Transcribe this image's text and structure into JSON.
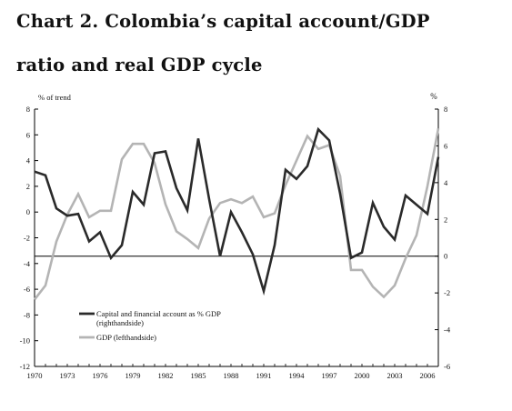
{
  "title_line1": "Chart 2. Colombia’s capital account/GDP",
  "title_line2": "ratio and real GDP cycle",
  "chart_data": {
    "type": "line",
    "title": "Chart 2. Colombia’s capital account/GDP ratio and real GDP cycle",
    "left_axis_label": "% of trend",
    "right_axis_label": "%",
    "left_ylim": [
      -12,
      8
    ],
    "left_ticks": [
      8,
      6,
      4,
      2,
      0,
      -2,
      -4,
      -6,
      -8,
      -10,
      -12
    ],
    "right_ylim": [
      -6,
      8
    ],
    "right_ticks": [
      8,
      6,
      4,
      2,
      0,
      -2,
      -4,
      -6
    ],
    "xlim": [
      1970,
      2007
    ],
    "x_ticks": [
      "1970",
      "1973",
      "1976",
      "1979",
      "1982",
      "1985",
      "1988",
      "1991",
      "1994",
      "1997",
      "2000",
      "2003",
      "2006"
    ],
    "grid": false,
    "zero_line_axis": "right",
    "legend_position": "lower-left",
    "series": [
      {
        "name": "Capital and financial account as % GDP",
        "name_sub": "(righthandside)",
        "axis": "right",
        "color": "#2a2a2a",
        "x": [
          1970,
          1971,
          1972,
          1973,
          1974,
          1975,
          1976,
          1977,
          1978,
          1979,
          1980,
          1981,
          1982,
          1983,
          1984,
          1985,
          1986,
          1987,
          1988,
          1989,
          1990,
          1991,
          1992,
          1993,
          1994,
          1995,
          1996,
          1997,
          1998,
          1999,
          2000,
          2001,
          2002,
          2003,
          2004,
          2005,
          2006,
          2007
        ],
        "y": [
          4.6,
          4.4,
          2.6,
          2.2,
          2.3,
          0.8,
          1.3,
          -0.1,
          0.6,
          3.5,
          2.8,
          5.6,
          5.7,
          3.7,
          2.5,
          6.4,
          3.1,
          0.0,
          2.4,
          1.3,
          0.1,
          -1.9,
          0.6,
          4.7,
          4.2,
          4.9,
          6.9,
          6.3,
          3.4,
          -0.1,
          0.2,
          2.9,
          1.6,
          0.9,
          3.3,
          2.8,
          2.3,
          5.4
        ]
      },
      {
        "name": "GDP (lefthandside)",
        "axis": "left",
        "color": "#b4b4b4",
        "x": [
          1970,
          1971,
          1972,
          1973,
          1974,
          1975,
          1976,
          1977,
          1978,
          1979,
          1980,
          1981,
          1982,
          1983,
          1984,
          1985,
          1986,
          1987,
          1988,
          1989,
          1990,
          1991,
          1992,
          1993,
          1994,
          1995,
          1996,
          1997,
          1998,
          1999,
          2000,
          2001,
          2002,
          2003,
          2004,
          2005,
          2006,
          2007
        ],
        "y": [
          -6.8,
          -5.7,
          -2.3,
          -0.2,
          1.4,
          -0.4,
          0.1,
          0.1,
          4.1,
          5.3,
          5.3,
          3.8,
          0.6,
          -1.5,
          -2.1,
          -2.8,
          -0.5,
          0.7,
          1.0,
          0.7,
          1.2,
          -0.4,
          -0.1,
          2.1,
          4.0,
          5.9,
          4.9,
          5.2,
          2.8,
          -4.5,
          -4.5,
          -5.8,
          -6.6,
          -5.7,
          -3.6,
          -1.8,
          2.0,
          6.5
        ]
      }
    ]
  }
}
